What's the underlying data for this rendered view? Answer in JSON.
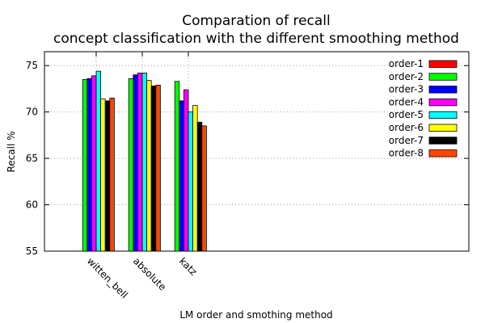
{
  "chart_data": {
    "type": "bar",
    "title": "Comparation of recall",
    "subtitle": "concept classification with the different smoothing method",
    "xlabel": "LM order and smothing method",
    "ylabel": "Recall %",
    "ylim": [
      55,
      76.5
    ],
    "yticks": [
      55,
      60,
      65,
      70,
      75
    ],
    "grid": true,
    "legend_position": "top-right",
    "categories": [
      "witten_bell",
      "absolute",
      "katz"
    ],
    "series": [
      {
        "name": "order-1",
        "color": "#ff0000",
        "values": [
          null,
          null,
          null
        ]
      },
      {
        "name": "order-2",
        "color": "#00ff00",
        "values": [
          73.5,
          73.6,
          73.3
        ]
      },
      {
        "name": "order-3",
        "color": "#0000ff",
        "values": [
          73.6,
          74.0,
          71.2
        ]
      },
      {
        "name": "order-4",
        "color": "#ff00ff",
        "values": [
          73.9,
          74.2,
          72.4
        ]
      },
      {
        "name": "order-5",
        "color": "#00ffff",
        "values": [
          74.4,
          74.2,
          70.0
        ]
      },
      {
        "name": "order-6",
        "color": "#ffff00",
        "values": [
          71.4,
          73.4,
          70.7
        ]
      },
      {
        "name": "order-7",
        "color": "#000000",
        "values": [
          71.2,
          72.8,
          68.9
        ]
      },
      {
        "name": "order-8",
        "color": "#ff4500",
        "values": [
          71.5,
          72.9,
          68.5
        ]
      }
    ]
  }
}
